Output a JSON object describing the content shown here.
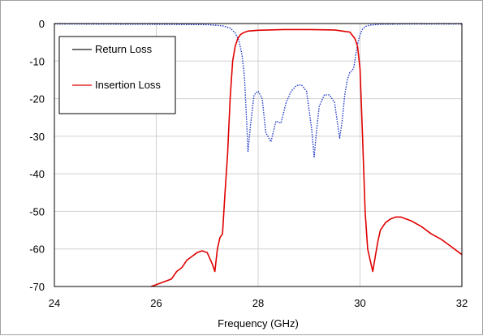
{
  "chart_data": {
    "type": "line",
    "title": "",
    "xlabel": "Frequency (GHz)",
    "ylabel": "",
    "xlim": [
      24,
      32
    ],
    "ylim": [
      -70,
      0
    ],
    "xticks": [
      24,
      26,
      28,
      30,
      32
    ],
    "yticks": [
      0,
      -10,
      -20,
      -30,
      -40,
      -50,
      -60,
      -70
    ],
    "grid": true,
    "legend_position": "top-left",
    "series": [
      {
        "name": "Return Loss",
        "color": "#2038c8",
        "style": "dotted",
        "x": [
          24.0,
          25.0,
          26.0,
          27.0,
          27.3,
          27.45,
          27.55,
          27.62,
          27.68,
          27.73,
          27.77,
          27.8,
          27.85,
          27.92,
          28.0,
          28.08,
          28.15,
          28.25,
          28.35,
          28.45,
          28.55,
          28.65,
          28.75,
          28.85,
          28.95,
          29.05,
          29.1,
          29.15,
          29.2,
          29.3,
          29.4,
          29.5,
          29.6,
          29.65,
          29.7,
          29.75,
          29.8,
          29.85,
          29.88,
          29.92,
          29.96,
          30.0,
          30.05,
          30.1,
          30.2,
          30.4,
          31.0,
          32.0
        ],
        "y": [
          -0.1,
          -0.15,
          -0.2,
          -0.3,
          -0.6,
          -1.2,
          -2.5,
          -4.5,
          -8,
          -14,
          -25,
          -34,
          -27,
          -19,
          -18,
          -20,
          -29,
          -31.5,
          -26,
          -26.5,
          -21,
          -18,
          -16.5,
          -16.3,
          -18,
          -28,
          -35.5,
          -28,
          -22,
          -19,
          -19,
          -21,
          -30.5,
          -26,
          -19,
          -15,
          -13,
          -12.5,
          -11.5,
          -8,
          -5,
          -3,
          -1.5,
          -0.8,
          -0.4,
          -0.2,
          -0.1,
          -0.1
        ]
      },
      {
        "name": "Insertion Loss",
        "color": "#e00000",
        "style": "solid",
        "x": [
          25.9,
          26.0,
          26.1,
          26.2,
          26.3,
          26.4,
          26.5,
          26.6,
          26.7,
          26.8,
          26.9,
          27.0,
          27.05,
          27.1,
          27.15,
          27.2,
          27.25,
          27.3,
          27.35,
          27.4,
          27.45,
          27.5,
          27.55,
          27.6,
          27.65,
          27.7,
          27.8,
          28.0,
          28.5,
          29.0,
          29.5,
          29.8,
          29.9,
          29.95,
          30.0,
          30.05,
          30.1,
          30.15,
          30.2,
          30.25,
          30.3,
          30.35,
          30.4,
          30.5,
          30.6,
          30.7,
          30.8,
          30.9,
          31.0,
          31.2,
          31.4,
          31.6,
          31.8,
          32.0
        ],
        "y": [
          -70,
          -69.5,
          -69,
          -68.5,
          -68,
          -66,
          -65,
          -63,
          -62,
          -61,
          -60.5,
          -61,
          -62.5,
          -64,
          -66,
          -60,
          -57,
          -56,
          -45,
          -35,
          -20,
          -10,
          -6,
          -4,
          -3,
          -2.5,
          -2,
          -1.8,
          -1.6,
          -1.6,
          -1.7,
          -2.3,
          -4,
          -6,
          -12,
          -30,
          -50,
          -60,
          -63,
          -66,
          -62,
          -58,
          -55,
          -53,
          -52,
          -51.5,
          -51.5,
          -52,
          -52.5,
          -54,
          -56,
          -57.5,
          -59.5,
          -61.5
        ]
      }
    ]
  },
  "legend": {
    "items": [
      {
        "label": "Return Loss",
        "color": "#1a1a1a"
      },
      {
        "label": "Insertion Loss",
        "color": "#e00000"
      }
    ]
  }
}
